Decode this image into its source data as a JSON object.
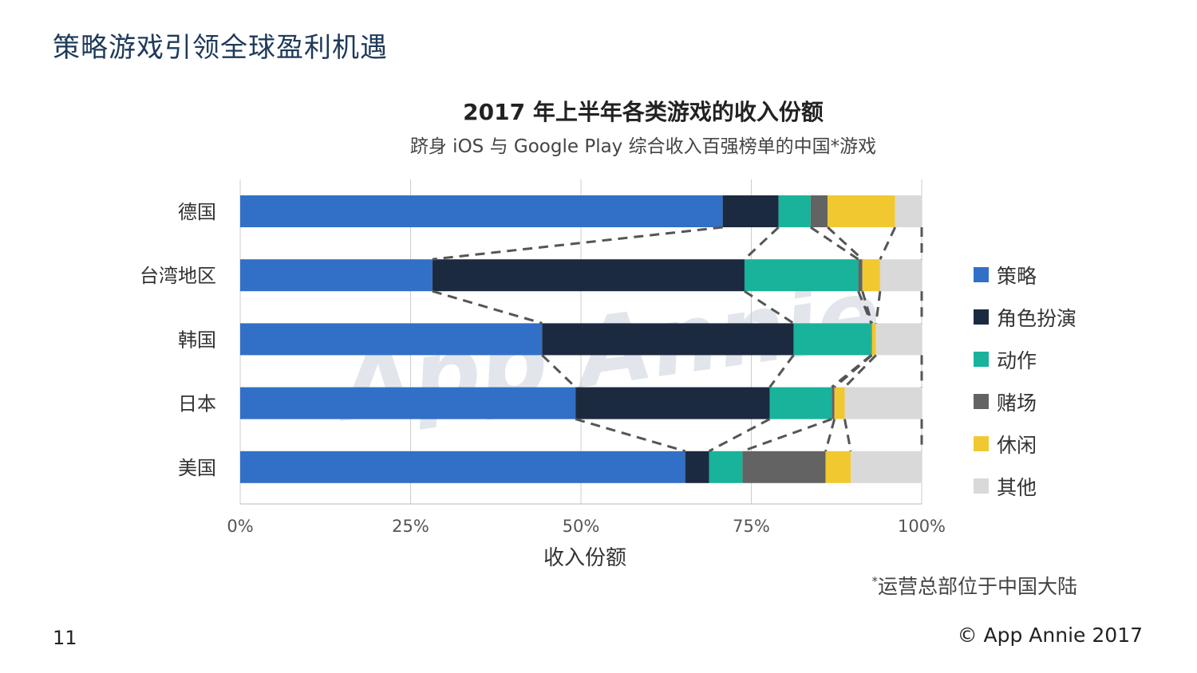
{
  "slide": {
    "title": "策略游戏引领全球盈利机遇",
    "page_number": "11",
    "copyright": "© App Annie 2017",
    "footnote_mark": "*",
    "footnote_text": "运营总部位于中国大陆"
  },
  "watermark": "App Annie",
  "chart_data": {
    "type": "bar",
    "orientation": "horizontal",
    "stacked": true,
    "title": "2017 年上半年各类游戏的收入份额",
    "subtitle": "跻身 iOS 与 Google Play 综合收入百强榜单的中国*游戏",
    "xlabel": "收入份额",
    "ylabel": "",
    "xlim": [
      0,
      100
    ],
    "x_ticks": [
      "0%",
      "25%",
      "50%",
      "75%",
      "100%"
    ],
    "grid": true,
    "legend_position": "right",
    "categories": [
      "德国",
      "台湾地区",
      "韩国",
      "日本",
      "美国"
    ],
    "series": [
      {
        "name": "策略",
        "color": "#3170c6",
        "values": [
          70.8,
          28.2,
          44.3,
          49.2,
          65.3
        ]
      },
      {
        "name": "角色扮演",
        "color": "#1c2a40",
        "values": [
          8.2,
          45.8,
          36.9,
          28.5,
          3.5
        ]
      },
      {
        "name": "动作",
        "color": "#18b39a",
        "values": [
          4.7,
          16.7,
          11.4,
          9.1,
          4.9
        ]
      },
      {
        "name": "赌场",
        "color": "#636363",
        "values": [
          2.5,
          0.6,
          0.1,
          0.4,
          12.2
        ]
      },
      {
        "name": "休闲",
        "color": "#f2c830",
        "values": [
          9.9,
          2.6,
          0.6,
          1.5,
          3.7
        ]
      },
      {
        "name": "其他",
        "color": "#d9d9d9",
        "values": [
          3.9,
          6.1,
          6.7,
          11.3,
          10.4
        ]
      }
    ]
  }
}
